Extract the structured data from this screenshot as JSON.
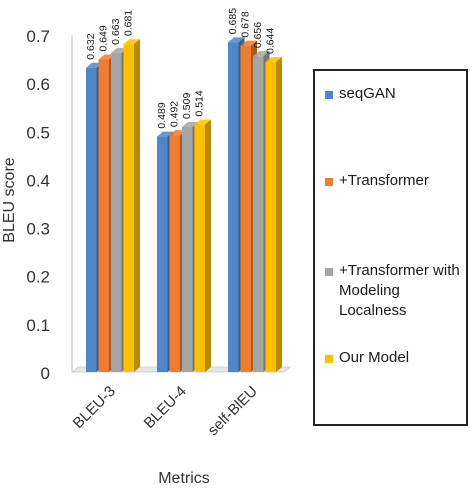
{
  "chart_data": {
    "type": "bar",
    "title": "",
    "xlabel": "Metrics",
    "ylabel": "BLEU score",
    "ylim": [
      0,
      0.7
    ],
    "yticks": [
      "0",
      "0.1",
      "0.2",
      "0.3",
      "0.4",
      "0.5",
      "0.6",
      "0.7"
    ],
    "yticks_values": [
      0,
      0.1,
      0.2,
      0.3,
      0.4,
      0.5,
      0.6,
      0.7
    ],
    "categories": [
      "BLEU-3",
      "BLEU-4",
      "self-BlEU"
    ],
    "legend_position": "right",
    "grid": false,
    "series": [
      {
        "name": "seqGAN",
        "color": "#4f86c6",
        "values": [
          0.632,
          0.489,
          0.685
        ],
        "labels": [
          "0.632",
          "0.489",
          "0.685"
        ]
      },
      {
        "name": "+Transformer",
        "color": "#ed7d31",
        "values": [
          0.649,
          0.492,
          0.678
        ],
        "labels": [
          "0.649",
          "0.492",
          "0.678"
        ]
      },
      {
        "name": "+Transformer with Modeling Localness",
        "color": "#a5a5a5",
        "values": [
          0.663,
          0.509,
          0.656
        ],
        "labels": [
          "0.663",
          "0.509",
          "0.656"
        ]
      },
      {
        "name": "Our Model",
        "color": "#ffc000",
        "values": [
          0.681,
          0.514,
          0.644
        ],
        "labels": [
          "0.681",
          "0.514",
          "0.644"
        ]
      }
    ]
  }
}
